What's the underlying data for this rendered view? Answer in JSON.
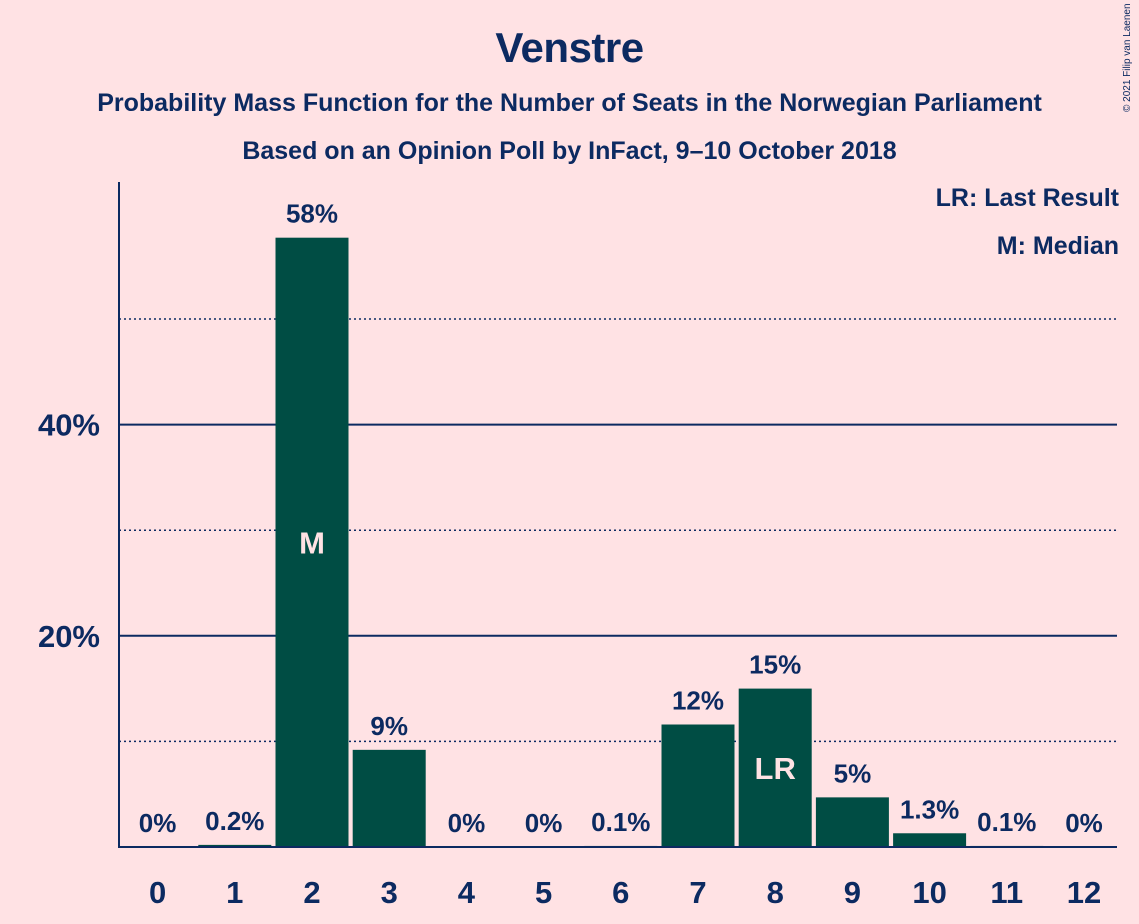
{
  "title": "Venstre",
  "subtitle1": "Probability Mass Function for the Number of Seats in the Norwegian Parliament",
  "subtitle2": "Based on an Opinion Poll by InFact, 9–10 October 2018",
  "copyright": "© 2021 Filip van Laenen",
  "legend": {
    "lr": "LR: Last Result",
    "m": "M: Median"
  },
  "colors": {
    "background": "#FFE2E4",
    "bar": "#004D44",
    "text": "#0C2A61"
  },
  "chart_data": {
    "type": "bar",
    "categories": [
      "0",
      "1",
      "2",
      "3",
      "4",
      "5",
      "6",
      "7",
      "8",
      "9",
      "10",
      "11",
      "12"
    ],
    "values": [
      0,
      0.2,
      58,
      9,
      0,
      0,
      0.1,
      12,
      15,
      5,
      1.3,
      0.1,
      0
    ],
    "plotted_values": [
      0,
      0.2,
      57.7,
      9.2,
      0,
      0,
      0.1,
      11.6,
      15.0,
      4.7,
      1.3,
      0.1,
      0
    ],
    "labels": [
      "0%",
      "0.2%",
      "58%",
      "9%",
      "0%",
      "0%",
      "0.1%",
      "12%",
      "15%",
      "5%",
      "1.3%",
      "0.1%",
      "0%"
    ],
    "in_bar_labels": {
      "2": "M",
      "8": "LR"
    },
    "ylim": [
      0,
      63
    ],
    "yticks_major": [
      20,
      40
    ],
    "ytick_labels": [
      "20%",
      "40%"
    ],
    "yticks_minor": [
      10,
      30,
      50
    ],
    "xlabel": "",
    "ylabel": "",
    "grid": true,
    "legend_position": "top-right"
  }
}
